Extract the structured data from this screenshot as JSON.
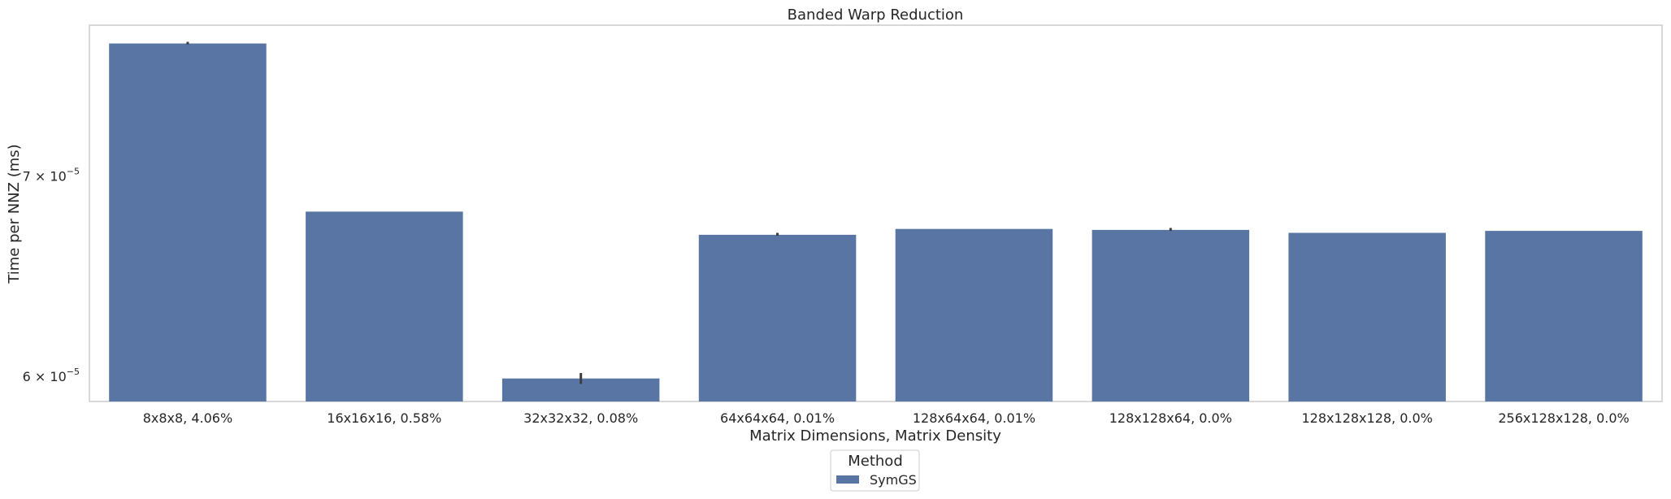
{
  "chart_data": {
    "type": "bar",
    "title": "Banded Warp Reduction",
    "xlabel": "Matrix Dimensions, Matrix Density",
    "ylabel": "Time per NNZ (ms)",
    "yscale": "log",
    "ylim": [
      5.885e-05,
      7.86e-05
    ],
    "yticks": [
      {
        "value": 6e-05,
        "base": "6 × 10",
        "exp": "−5"
      },
      {
        "value": 7e-05,
        "base": "7 × 10",
        "exp": "−5"
      }
    ],
    "categories": [
      "8x8x8, 4.06%",
      "16x16x16, 0.58%",
      "32x32x32, 0.08%",
      "64x64x64, 0.01%",
      "128x64x64, 0.01%",
      "128x128x64, 0.0%",
      "128x128x128, 0.0%",
      "256x128x128, 0.0%"
    ],
    "series": [
      {
        "name": "SymGS",
        "color": "#5975a4",
        "values": [
          7.75e-05,
          6.81e-05,
          5.99e-05,
          6.69e-05,
          6.72e-05,
          6.715e-05,
          6.7e-05,
          6.71e-05
        ],
        "error_bars": [
          [
            7.745e-05,
            7.76e-05
          ],
          null,
          [
            5.965e-05,
            6.015e-05
          ],
          [
            6.685e-05,
            6.7e-05
          ],
          null,
          [
            6.71e-05,
            6.725e-05
          ],
          null,
          null
        ]
      }
    ],
    "grid": false,
    "legend": {
      "title": "Method",
      "position": "bottom-center"
    }
  }
}
